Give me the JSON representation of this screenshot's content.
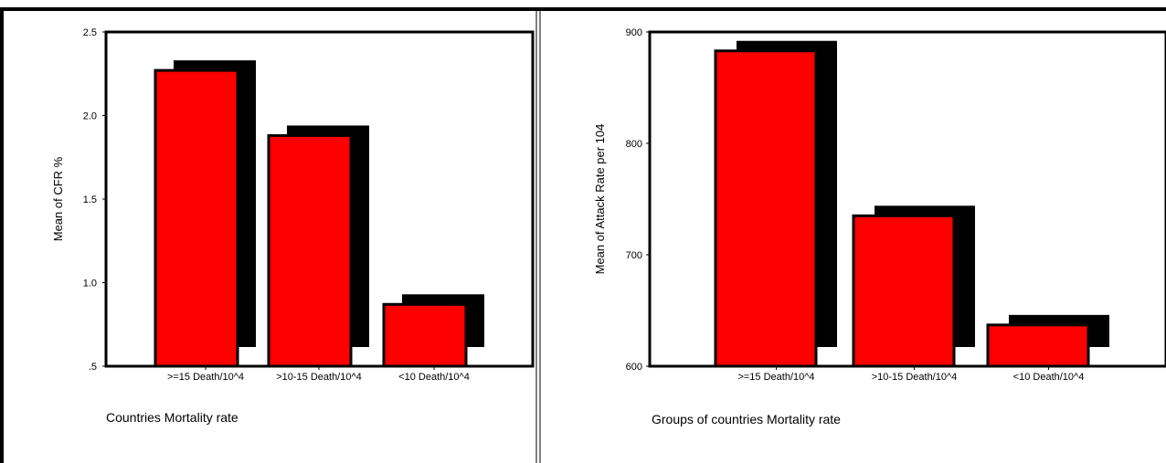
{
  "chart_data": [
    {
      "type": "bar",
      "categories": [
        ">=15 Death/10^4",
        ">10-15 Death/10^4",
        "<10 Death/10^4"
      ],
      "values": [
        2.27,
        1.88,
        0.87
      ],
      "ylim": [
        0.5,
        2.5
      ],
      "yticks": [
        0.5,
        1.0,
        1.5,
        2.0,
        2.5
      ],
      "ytick_labels": [
        ".5",
        "1.0",
        "1.5",
        "2.0",
        "2.5"
      ],
      "ylabel": "Mean of CFR %",
      "xlabel": "Countries Mortality rate",
      "bar_color": "#ff0000",
      "shadow_color": "#000000",
      "grid": false
    },
    {
      "type": "bar",
      "categories": [
        ">=15 Death/10^4",
        ">10-15 Death/10^4",
        "<10 Death/10^4"
      ],
      "values": [
        883,
        735,
        637
      ],
      "ylim": [
        600,
        900
      ],
      "yticks": [
        600,
        700,
        800,
        900
      ],
      "ytick_labels": [
        "600",
        "700",
        "800",
        "900"
      ],
      "ylabel": "Mean of Attack Rate per 104",
      "xlabel": "Groups of countries Mortality rate",
      "bar_color": "#ff0000",
      "shadow_color": "#000000",
      "grid": false
    }
  ]
}
